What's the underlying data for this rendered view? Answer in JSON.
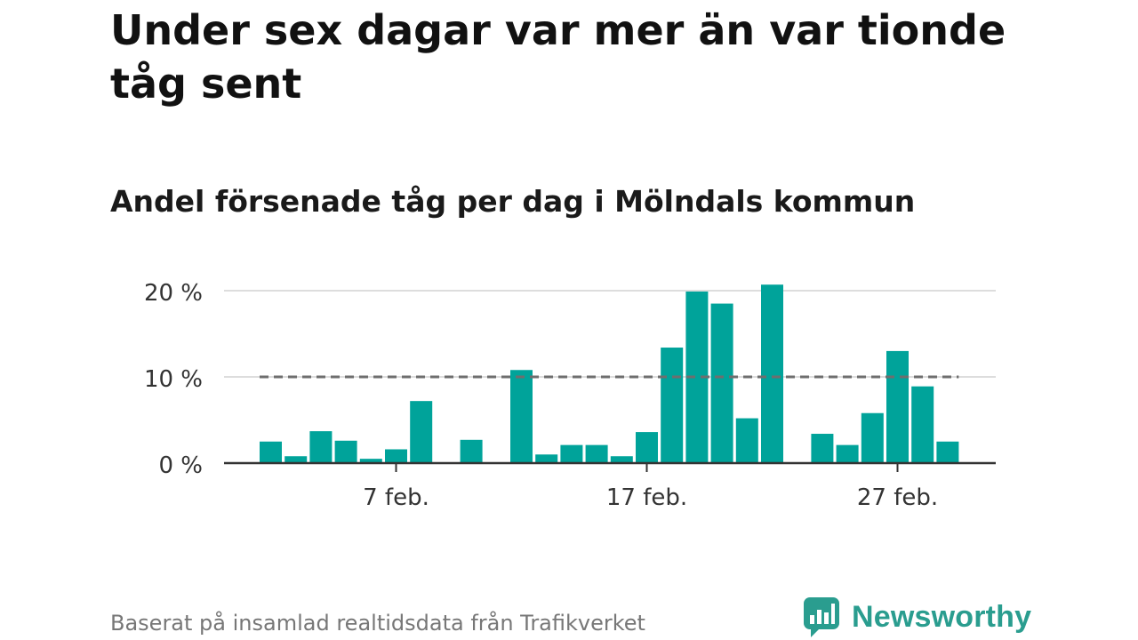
{
  "title": "Under sex dagar var mer än var tionde tåg sent",
  "subtitle": "Andel försenade tåg per dag i Mölndals kommun",
  "source": "Baserat på insamlad realtidsdata från Trafikverket",
  "logo": {
    "text": "Newsworthy",
    "icon": "bar-chart-badge-icon",
    "color": "#2a9d8f"
  },
  "chart_data": {
    "type": "bar",
    "categories": [
      "2 feb.",
      "3 feb.",
      "4 feb.",
      "5 feb.",
      "6 feb.",
      "7 feb.",
      "8 feb.",
      "9 feb.",
      "10 feb.",
      "11 feb.",
      "12 feb.",
      "13 feb.",
      "14 feb.",
      "15 feb.",
      "16 feb.",
      "17 feb.",
      "18 feb.",
      "19 feb.",
      "20 feb.",
      "21 feb.",
      "22 feb.",
      "23 feb.",
      "24 feb.",
      "25 feb.",
      "26 feb.",
      "27 feb.",
      "28 feb.",
      "1 mar."
    ],
    "values": [
      2.5,
      0.8,
      3.7,
      2.6,
      0.5,
      1.6,
      7.2,
      null,
      2.7,
      null,
      10.8,
      1.0,
      2.1,
      2.1,
      0.8,
      3.6,
      13.4,
      19.9,
      18.5,
      5.2,
      20.7,
      null,
      3.4,
      2.1,
      5.8,
      13.0,
      8.9,
      2.5
    ],
    "ylim": [
      0,
      21
    ],
    "yticks": [
      0,
      10,
      20
    ],
    "ytick_labels": [
      "0 %",
      "10 %",
      "20 %"
    ],
    "xticks": [
      "7 feb.",
      "17 feb.",
      "27 feb."
    ],
    "reference_line": 10,
    "bar_color": "#00a39a",
    "grid": true
  }
}
